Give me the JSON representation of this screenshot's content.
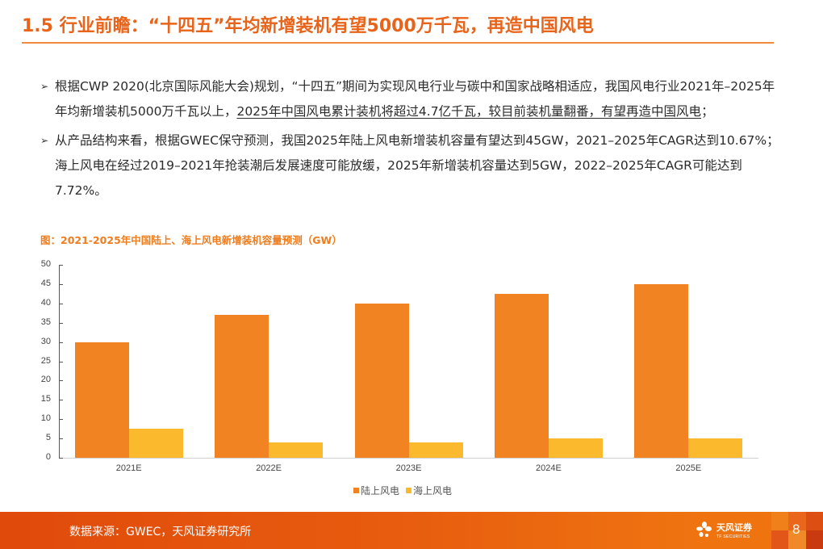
{
  "header": {
    "title": "1.5 行业前瞻：“十四五”年均新增装机有望5000万千瓦，再造中国风电"
  },
  "bullets": [
    {
      "marker": "➢",
      "text_plain": "根据CWP 2020(北京国际风能大会)规划，“十四五”期间为实现风电行业与碳中和国家战略相适应，我国风电行业2021年–2025年年均新增装机5000万千瓦以上，",
      "text_underlined": "2025年中国风电累计装机将超过4.7亿千瓦，较目前装机量翻番，有望再造中国风电",
      "text_tail": "；"
    },
    {
      "marker": "➢",
      "text_plain": "从产品结构来看，根据GWEC保守预测，我国2025年陆上风电新增装机容量有望达到45GW，2021–2025年CAGR达到10.67%；海上风电在经过2019–2021年抢装潮后发展速度可能放缓，2025年新增装机容量达到5GW，2022–2025年CAGR可能达到7.72%。"
    }
  ],
  "figure": {
    "title": "图：2021-2025年中国陆上、海上风电新增装机容量预测（GW）"
  },
  "chart_data": {
    "type": "bar",
    "title": "图：2021-2025年中国陆上、海上风电新增装机容量预测（GW）",
    "categories": [
      "2021E",
      "2022E",
      "2023E",
      "2024E",
      "2025E"
    ],
    "series": [
      {
        "name": "陆上风电",
        "color": "#f28323",
        "values": [
          30,
          37,
          40,
          42.5,
          45
        ]
      },
      {
        "name": "海上风电",
        "color": "#fbb92d",
        "values": [
          7.5,
          4,
          4,
          5,
          5
        ]
      }
    ],
    "xlabel": "",
    "ylabel": "",
    "ylim": [
      0,
      50
    ],
    "yticks": [
      0,
      5,
      10,
      15,
      20,
      25,
      30,
      35,
      40,
      45,
      50
    ],
    "grid": false,
    "legend_position": "bottom"
  },
  "footer": {
    "source": "数据来源：GWEC，天风证券研究所",
    "logo_text": "天风证券",
    "logo_sub": "TF SECURITIES",
    "page_number": "8"
  }
}
